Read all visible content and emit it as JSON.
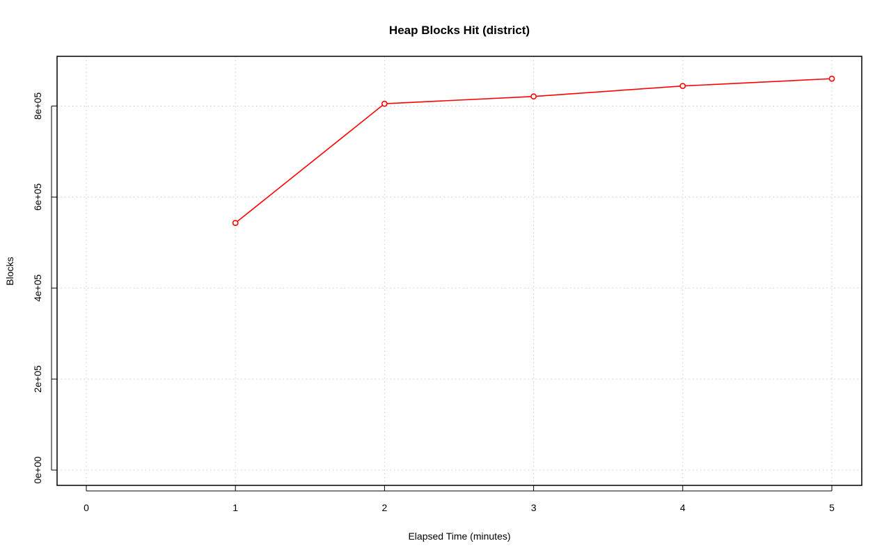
{
  "chart_data": {
    "type": "line",
    "title": "Heap Blocks Hit (district)",
    "xlabel": "Elapsed Time (minutes)",
    "ylabel": "Blocks",
    "xlim": [
      0,
      5
    ],
    "ylim": [
      0,
      900000
    ],
    "x_ticks": [
      0,
      1,
      2,
      3,
      4,
      5
    ],
    "x_tick_labels": [
      "0",
      "1",
      "2",
      "3",
      "4",
      "5"
    ],
    "y_ticks": [
      0,
      200000,
      400000,
      600000,
      800000
    ],
    "y_tick_labels": [
      "0e+00",
      "2e+05",
      "4e+05",
      "6e+05",
      "8e+05"
    ],
    "grid": true,
    "series": [
      {
        "color": "#ff0000",
        "marker": "open-circle",
        "x": [
          1,
          2,
          3,
          4,
          5
        ],
        "y": [
          543000,
          805000,
          821000,
          844000,
          860000
        ]
      }
    ]
  }
}
